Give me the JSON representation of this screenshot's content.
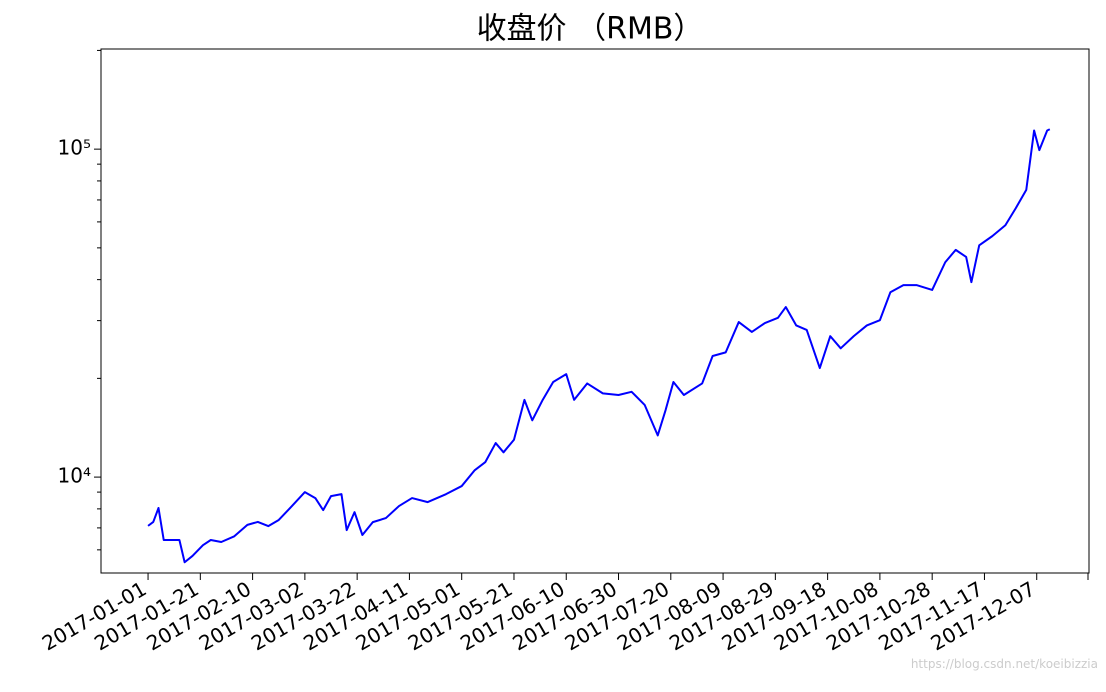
{
  "chart_data": {
    "type": "line",
    "title": "收盘价 （RMB）",
    "x": [
      "2017-01-01",
      "2017-01-03",
      "2017-01-05",
      "2017-01-07",
      "2017-01-10",
      "2017-01-13",
      "2017-01-15",
      "2017-01-18",
      "2017-01-22",
      "2017-01-25",
      "2017-01-29",
      "2017-02-03",
      "2017-02-08",
      "2017-02-12",
      "2017-02-16",
      "2017-02-20",
      "2017-02-25",
      "2017-03-02",
      "2017-03-06",
      "2017-03-09",
      "2017-03-12",
      "2017-03-16",
      "2017-03-18",
      "2017-03-21",
      "2017-03-24",
      "2017-03-28",
      "2017-04-02",
      "2017-04-07",
      "2017-04-12",
      "2017-04-18",
      "2017-04-25",
      "2017-05-01",
      "2017-05-06",
      "2017-05-10",
      "2017-05-14",
      "2017-05-17",
      "2017-05-21",
      "2017-05-25",
      "2017-05-28",
      "2017-06-01",
      "2017-06-05",
      "2017-06-10",
      "2017-06-13",
      "2017-06-18",
      "2017-06-24",
      "2017-06-30",
      "2017-07-05",
      "2017-07-10",
      "2017-07-15",
      "2017-07-18",
      "2017-07-21",
      "2017-07-25",
      "2017-08-01",
      "2017-08-05",
      "2017-08-10",
      "2017-08-15",
      "2017-08-20",
      "2017-08-25",
      "2017-08-30",
      "2017-09-02",
      "2017-09-06",
      "2017-09-10",
      "2017-09-15",
      "2017-09-19",
      "2017-09-23",
      "2017-09-28",
      "2017-10-03",
      "2017-10-08",
      "2017-10-12",
      "2017-10-17",
      "2017-10-22",
      "2017-10-28",
      "2017-11-02",
      "2017-11-06",
      "2017-11-10",
      "2017-11-12",
      "2017-11-15",
      "2017-11-20",
      "2017-11-25",
      "2017-11-29",
      "2017-12-03",
      "2017-12-06",
      "2017-12-08",
      "2017-12-11",
      "2017-12-12"
    ],
    "series": [
      {
        "color": "#0000ff",
        "values": [
          7100,
          7300,
          8050,
          6430,
          6430,
          6430,
          5500,
          5750,
          6200,
          6430,
          6340,
          6600,
          7150,
          7300,
          7090,
          7400,
          8150,
          9000,
          8630,
          7930,
          8750,
          8870,
          6890,
          7820,
          6660,
          7290,
          7500,
          8160,
          8630,
          8390,
          8870,
          9390,
          10500,
          11100,
          12700,
          11900,
          13000,
          17200,
          14900,
          17200,
          19500,
          20600,
          17200,
          19300,
          18000,
          17800,
          18200,
          16600,
          13400,
          16000,
          19500,
          17800,
          19300,
          23400,
          24000,
          29700,
          27700,
          29500,
          30600,
          33000,
          29000,
          28100,
          21500,
          26900,
          24700,
          26900,
          29000,
          30100,
          36600,
          38500,
          38500,
          37200,
          45200,
          49300,
          46900,
          39300,
          50900,
          54300,
          58600,
          66100,
          75100,
          114000,
          99300,
          114000,
          115000
        ]
      }
    ],
    "xlim": [
      "2016-12-14",
      "2017-12-27"
    ],
    "xticks": [
      "2017-01-01",
      "2017-01-21",
      "2017-02-10",
      "2017-03-02",
      "2017-03-22",
      "2017-04-11",
      "2017-05-01",
      "2017-05-21",
      "2017-06-10",
      "2017-06-30",
      "2017-07-20",
      "2017-08-09",
      "2017-08-29",
      "2017-09-18",
      "2017-10-08",
      "2017-10-28",
      "2017-11-17",
      "2017-12-07"
    ],
    "ylim": [
      5100,
      202000
    ],
    "log_y": true,
    "yticks": [
      {
        "value": 10000,
        "label": "10⁴"
      },
      {
        "value": 100000,
        "label": "10⁵"
      }
    ],
    "yminorticks": [
      6000,
      7000,
      8000,
      9000,
      20000,
      30000,
      40000,
      50000,
      60000,
      70000,
      80000,
      90000,
      200000
    ],
    "watermark": "https://blog.csdn.net/koeibizzia"
  }
}
